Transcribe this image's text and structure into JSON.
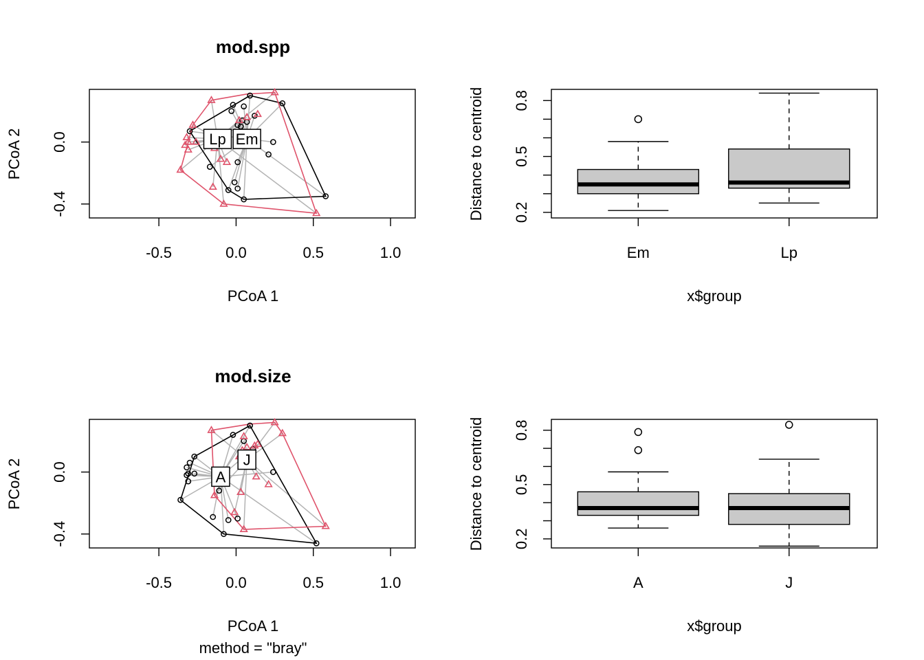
{
  "colors": {
    "group1": "#000000",
    "group2": "#DF536B",
    "segment": "#B3B3B3",
    "box_fill": "#C9C9C9"
  },
  "chart_data": [
    {
      "type": "scatter",
      "title": "mod.spp",
      "subtitle": "",
      "xlabel": "PCoA 1",
      "ylabel": "PCoA 2",
      "xlim": [
        -0.95,
        1.16
      ],
      "ylim": [
        -0.49,
        0.34
      ],
      "xticks": [
        "-0.5",
        "0.0",
        "0.5",
        "1.0"
      ],
      "yticks": [
        "-0.4",
        "0.0"
      ],
      "grid": false,
      "series": [
        {
          "name": "Em",
          "marker": "circle",
          "centroid": [
            0.07,
            0.02
          ],
          "points": [
            [
              0.09,
              0.3
            ],
            [
              -0.02,
              0.24
            ],
            [
              0.05,
              0.23
            ],
            [
              -0.03,
              0.2
            ],
            [
              0.12,
              0.17
            ],
            [
              0.04,
              0.14
            ],
            [
              0.07,
              0.13
            ],
            [
              0.01,
              0.11
            ],
            [
              0.03,
              0.1
            ],
            [
              0.3,
              0.25
            ],
            [
              -0.3,
              0.07
            ],
            [
              -0.17,
              -0.16
            ],
            [
              0.24,
              0.0
            ],
            [
              0.21,
              -0.08
            ],
            [
              0.01,
              -0.13
            ],
            [
              -0.01,
              -0.26
            ],
            [
              0.01,
              -0.3
            ],
            [
              -0.05,
              -0.31
            ],
            [
              0.05,
              -0.37
            ],
            [
              0.58,
              -0.35
            ]
          ],
          "hull": [
            [
              0.09,
              0.3
            ],
            [
              0.3,
              0.25
            ],
            [
              0.58,
              -0.35
            ],
            [
              0.05,
              -0.37
            ],
            [
              -0.05,
              -0.31
            ],
            [
              -0.3,
              0.07
            ]
          ]
        },
        {
          "name": "Lp",
          "marker": "triangle",
          "centroid": [
            -0.12,
            0.02
          ],
          "points": [
            [
              0.25,
              0.32
            ],
            [
              -0.16,
              0.27
            ],
            [
              0.14,
              0.18
            ],
            [
              0.07,
              0.16
            ],
            [
              0.02,
              0.14
            ],
            [
              -0.28,
              0.11
            ],
            [
              -0.32,
              0.03
            ],
            [
              -0.31,
              0.0
            ],
            [
              -0.33,
              -0.02
            ],
            [
              -0.31,
              -0.05
            ],
            [
              -0.26,
              0.0
            ],
            [
              -0.14,
              -0.04
            ],
            [
              -0.1,
              -0.11
            ],
            [
              -0.06,
              -0.13
            ],
            [
              -0.36,
              -0.18
            ],
            [
              -0.15,
              -0.29
            ],
            [
              -0.08,
              -0.4
            ],
            [
              0.52,
              -0.46
            ]
          ],
          "hull": [
            [
              -0.16,
              0.27
            ],
            [
              0.07,
              0.31
            ],
            [
              0.25,
              0.32
            ],
            [
              0.52,
              -0.46
            ],
            [
              -0.08,
              -0.4
            ],
            [
              -0.36,
              -0.18
            ],
            [
              -0.31,
              0.0
            ],
            [
              -0.28,
              0.11
            ]
          ]
        }
      ]
    },
    {
      "type": "box",
      "title": "",
      "xlabel": "x$group",
      "ylabel": "Distance to centroid",
      "ylim": [
        0.17,
        0.86
      ],
      "yticks": [
        "0.2",
        "0.5",
        "0.8"
      ],
      "categories": [
        "Em",
        "Lp"
      ],
      "boxes": [
        {
          "name": "Em",
          "min": 0.21,
          "q1": 0.3,
          "median": 0.35,
          "q3": 0.43,
          "max": 0.58,
          "outliers": [
            0.7
          ]
        },
        {
          "name": "Lp",
          "min": 0.25,
          "q1": 0.33,
          "median": 0.36,
          "q3": 0.54,
          "max": 0.84,
          "outliers": []
        }
      ]
    },
    {
      "type": "scatter",
      "title": "mod.size",
      "subtitle": "method = \"bray\"",
      "xlabel": "PCoA 1",
      "ylabel": "PCoA 2",
      "xlim": [
        -0.95,
        1.16
      ],
      "ylim": [
        -0.49,
        0.34
      ],
      "xticks": [
        "-0.5",
        "0.0",
        "0.5",
        "1.0"
      ],
      "yticks": [
        "-0.4",
        "0.0"
      ],
      "grid": false,
      "series": [
        {
          "name": "A",
          "marker": "circle",
          "centroid": [
            -0.1,
            -0.03
          ],
          "points": [
            [
              0.09,
              0.3
            ],
            [
              -0.02,
              0.24
            ],
            [
              0.05,
              0.2
            ],
            [
              0.11,
              0.15
            ],
            [
              -0.27,
              0.1
            ],
            [
              -0.3,
              0.06
            ],
            [
              -0.32,
              0.03
            ],
            [
              -0.32,
              -0.02
            ],
            [
              -0.31,
              -0.01
            ],
            [
              -0.27,
              -0.01
            ],
            [
              -0.31,
              -0.06
            ],
            [
              -0.36,
              -0.18
            ],
            [
              -0.11,
              -0.12
            ],
            [
              0.24,
              0.0
            ],
            [
              -0.15,
              -0.29
            ],
            [
              -0.05,
              -0.31
            ],
            [
              0.01,
              -0.3
            ],
            [
              -0.08,
              -0.4
            ],
            [
              0.52,
              -0.46
            ]
          ],
          "hull": [
            [
              0.09,
              0.3
            ],
            [
              0.52,
              -0.46
            ],
            [
              -0.08,
              -0.4
            ],
            [
              -0.36,
              -0.18
            ],
            [
              -0.27,
              0.1
            ]
          ]
        },
        {
          "name": "J",
          "marker": "triangle",
          "centroid": [
            0.07,
            0.08
          ],
          "points": [
            [
              0.25,
              0.32
            ],
            [
              0.3,
              0.25
            ],
            [
              -0.16,
              0.27
            ],
            [
              0.05,
              0.23
            ],
            [
              0.14,
              0.18
            ],
            [
              0.12,
              0.17
            ],
            [
              0.07,
              0.16
            ],
            [
              0.04,
              0.14
            ],
            [
              0.02,
              0.1
            ],
            [
              0.13,
              -0.03
            ],
            [
              0.21,
              -0.08
            ],
            [
              -0.14,
              -0.15
            ],
            [
              0.03,
              -0.13
            ],
            [
              -0.01,
              -0.26
            ],
            [
              0.58,
              -0.35
            ],
            [
              0.05,
              -0.37
            ]
          ],
          "hull": [
            [
              -0.16,
              0.27
            ],
            [
              0.09,
              0.31
            ],
            [
              0.25,
              0.32
            ],
            [
              0.3,
              0.25
            ],
            [
              0.58,
              -0.35
            ],
            [
              0.05,
              -0.37
            ],
            [
              -0.14,
              -0.15
            ]
          ]
        }
      ]
    },
    {
      "type": "box",
      "title": "",
      "xlabel": "x$group",
      "ylabel": "Distance to centroid",
      "ylim": [
        0.15,
        0.86
      ],
      "yticks": [
        "0.2",
        "0.5",
        "0.8"
      ],
      "categories": [
        "A",
        "J"
      ],
      "boxes": [
        {
          "name": "A",
          "min": 0.26,
          "q1": 0.33,
          "median": 0.37,
          "q3": 0.46,
          "max": 0.57,
          "outliers": [
            0.69,
            0.79
          ]
        },
        {
          "name": "J",
          "min": 0.16,
          "q1": 0.28,
          "median": 0.37,
          "q3": 0.45,
          "max": 0.64,
          "outliers": [
            0.83
          ]
        }
      ]
    }
  ]
}
